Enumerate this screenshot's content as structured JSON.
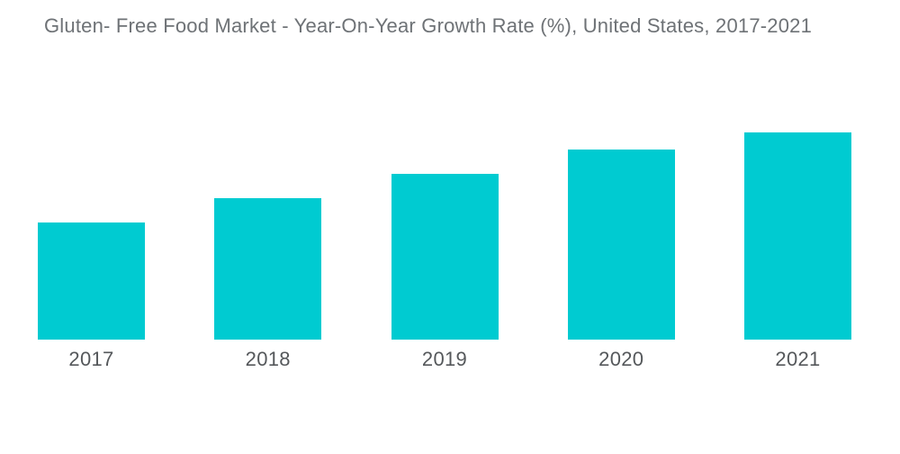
{
  "page": {
    "background_color": "#ffffff"
  },
  "chart_data": {
    "type": "bar",
    "title": "Gluten- Free Food Market - Year-On-Year Growth Rate (%), United States, 2017-2021",
    "categories": [
      "2017",
      "2018",
      "2019",
      "2020",
      "2021"
    ],
    "values": [
      56.5,
      68.3,
      80.0,
      91.7,
      100.0
    ],
    "values_note": "relative index estimated from bar heights; tallest bar (2021) = 100, y-axis has no labels in source",
    "xlabel": "",
    "ylabel": "",
    "ylim": [
      0,
      100
    ],
    "grid": false,
    "axes_visible": false,
    "legend": false,
    "bar_color": "#00cbd1",
    "title_color": "#6e7276",
    "x_label_color": "#55585b"
  }
}
